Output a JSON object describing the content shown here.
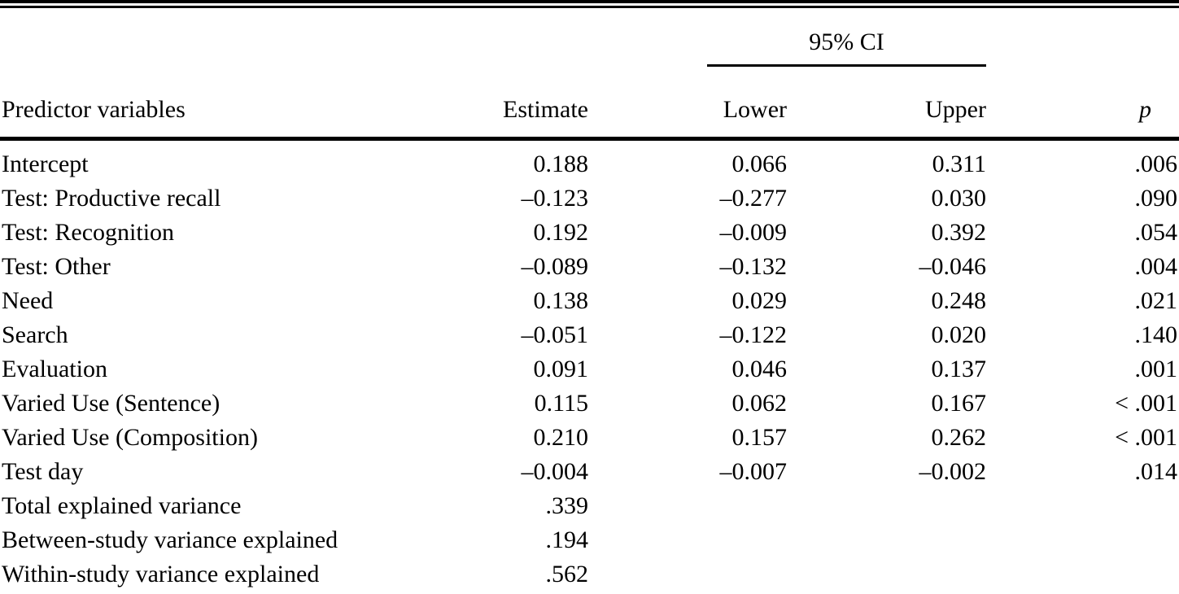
{
  "table": {
    "ci_header": "95% CI",
    "columns": {
      "predictor": "Predictor variables",
      "estimate": "Estimate",
      "lower": "Lower",
      "upper": "Upper",
      "p": "p"
    },
    "rows": [
      {
        "label": "Intercept",
        "estimate": "0.188",
        "lower": "0.066",
        "upper": "0.311",
        "p": ".006"
      },
      {
        "label": "Test: Productive recall",
        "estimate": "–0.123",
        "lower": "–0.277",
        "upper": "0.030",
        "p": ".090"
      },
      {
        "label": "Test: Recognition",
        "estimate": "0.192",
        "lower": "–0.009",
        "upper": "0.392",
        "p": ".054"
      },
      {
        "label": "Test: Other",
        "estimate": "–0.089",
        "lower": "–0.132",
        "upper": "–0.046",
        "p": ".004"
      },
      {
        "label": "Need",
        "estimate": "0.138",
        "lower": "0.029",
        "upper": "0.248",
        "p": ".021"
      },
      {
        "label": "Search",
        "estimate": "–0.051",
        "lower": "–0.122",
        "upper": "0.020",
        "p": ".140"
      },
      {
        "label": "Evaluation",
        "estimate": "0.091",
        "lower": "0.046",
        "upper": "0.137",
        "p": ".001"
      },
      {
        "label": "Varied Use (Sentence)",
        "estimate": "0.115",
        "lower": "0.062",
        "upper": "0.167",
        "p": "< .001"
      },
      {
        "label": "Varied Use (Composition)",
        "estimate": "0.210",
        "lower": "0.157",
        "upper": "0.262",
        "p": "< .001"
      },
      {
        "label": "Test day",
        "estimate": "–0.004",
        "lower": "–0.007",
        "upper": "–0.002",
        "p": ".014"
      },
      {
        "label": "Total explained variance",
        "estimate": ".339",
        "lower": "",
        "upper": "",
        "p": ""
      },
      {
        "label": "Between-study variance explained",
        "estimate": ".194",
        "lower": "",
        "upper": "",
        "p": ""
      },
      {
        "label": "Within-study variance explained",
        "estimate": ".562",
        "lower": "",
        "upper": "",
        "p": ""
      }
    ]
  }
}
